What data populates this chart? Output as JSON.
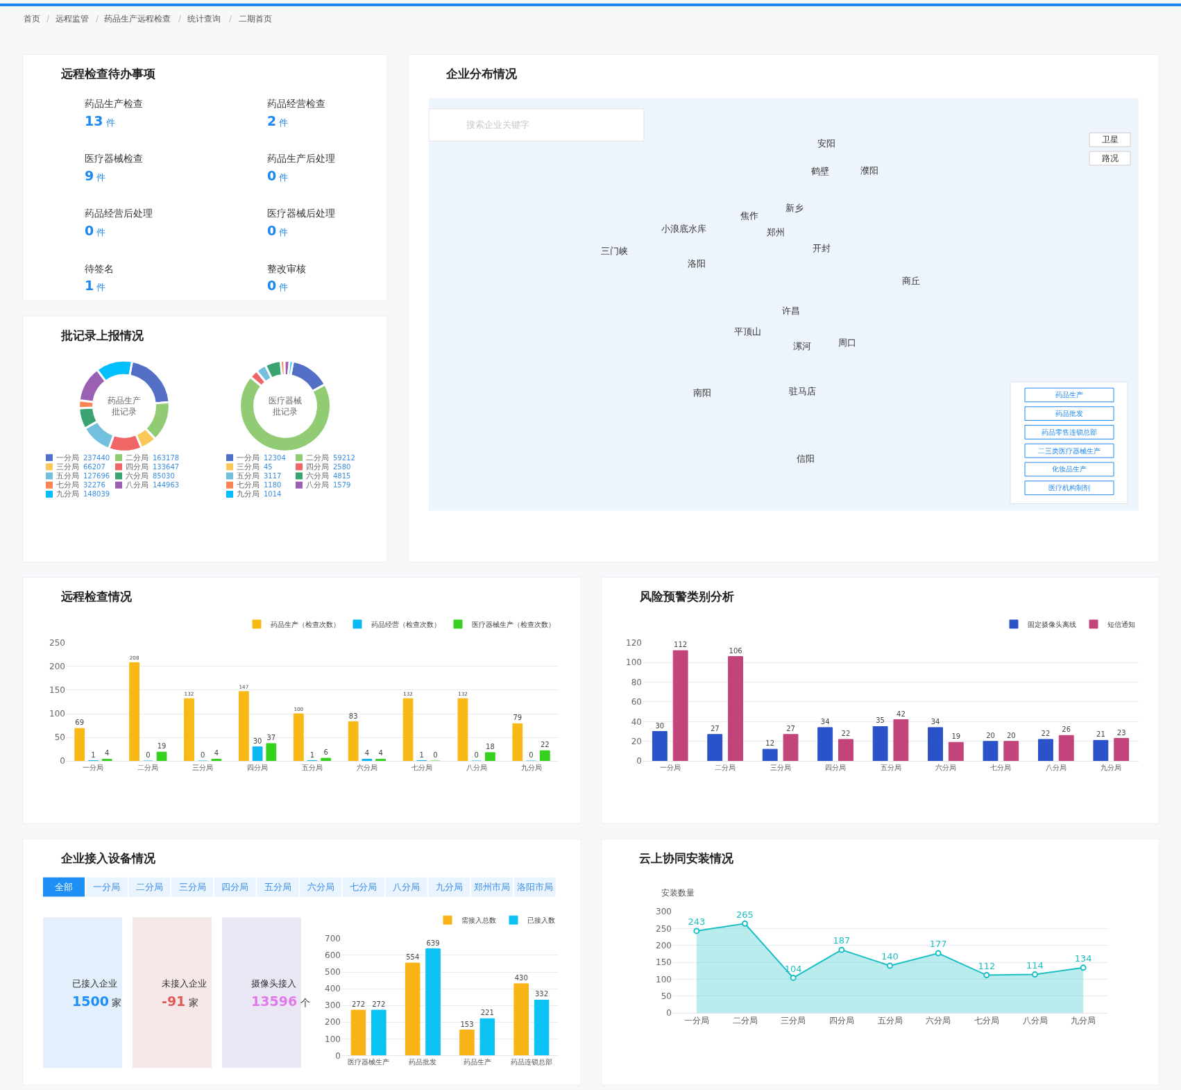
{
  "chart_data": [
    {
      "type": "other",
      "annotations": [
        "首页",
        "/",
        "远程监管",
        "/",
        "药品生产远程检查",
        "/",
        "统计查询",
        "/",
        "二期首页"
      ]
    },
    {
      "type": "other",
      "title": "远程检查待办事项",
      "categories": [
        "药品生产检查",
        "药品经营检查",
        "医疗器械检查",
        "药品生产后处理",
        "药品经营后处理",
        "医疗器械后处理",
        "待签名",
        "整改审核"
      ],
      "value_labels": [
        "13 件",
        "2 件",
        "9 件",
        "0 件",
        "0 件",
        "0 件",
        "1 件",
        "0 件"
      ]
    },
    {
      "type": "donut",
      "title": "批记录上报情况",
      "subtitle": "药品生产批记录",
      "categories": [
        "一分局",
        "二分局",
        "三分局",
        "四分局",
        "五分局",
        "六分局",
        "七分局",
        "八分局",
        "九分局"
      ],
      "values": [
        237440,
        163178,
        66207,
        133647,
        127696,
        85030,
        32276,
        144963,
        148039
      ],
      "colors": [
        "#5470c6",
        "#91cc75",
        "#fac858",
        "#ee6666",
        "#73c0de",
        "#3ba272",
        "#fc8452",
        "#9a60b4",
        "#00bfff"
      ],
      "data_labels": true,
      "legend": "bottom"
    },
    {
      "type": "donut",
      "subtitle": "医疗器械批记录",
      "categories": [
        "一分局",
        "二分局",
        "三分局",
        "四分局",
        "五分局",
        "六分局",
        "七分局",
        "八分局",
        "九分局"
      ],
      "values": [
        12304,
        59212,
        45,
        2580,
        3117,
        4815,
        1180,
        1579,
        1014
      ],
      "colors": [
        "#5470c6",
        "#91cc75",
        "#fac858",
        "#ee6666",
        "#73c0de",
        "#3ba272",
        "#fc8452",
        "#9a60b4",
        "#00bfff"
      ],
      "data_labels": true,
      "legend": "bottom"
    },
    {
      "type": "other",
      "title": "企业分布情况",
      "annotations": [
        "安阳",
        "鹤壁",
        "濮阳",
        "焦作",
        "新乡",
        "小浪底水库",
        "郑州",
        "开封",
        "三门峡",
        "洛阳",
        "商丘",
        "许昌",
        "平顶山",
        "漯河",
        "周口",
        "南阳",
        "驻马店",
        "信阳",
        "搜索企业关键字",
        "卫星",
        "路况",
        "药品生产",
        "药品批发",
        "药品零售连锁总部",
        "二三类医疗器械生产",
        "化妆品生产",
        "医疗机构制剂"
      ]
    },
    {
      "type": "bar",
      "title": "远程检查情况",
      "categories": [
        "一分局",
        "二分局",
        "三分局",
        "四分局",
        "五分局",
        "六分局",
        "七分局",
        "八分局",
        "九分局"
      ],
      "series": [
        {
          "name": "药品生产（检查次数）",
          "color": "#f8b916",
          "values": [
            69,
            208,
            132,
            147,
            100,
            83,
            132,
            132,
            79
          ]
        },
        {
          "name": "药品经营（检查次数）",
          "color": "#0ab8f2",
          "values": [
            1,
            0,
            0,
            30,
            1,
            4,
            1,
            0,
            0
          ]
        },
        {
          "name": "医疗器械生产（检查次数）",
          "color": "#36d11f",
          "values": [
            4,
            19,
            4,
            37,
            6,
            4,
            0,
            18,
            22
          ]
        }
      ],
      "ylim": [
        0,
        250
      ],
      "yticks": [
        0,
        50,
        100,
        150,
        200,
        250
      ],
      "grid": "y",
      "legend": "top right",
      "data_labels": true
    },
    {
      "type": "bar",
      "title": "风险预警类别分析",
      "categories": [
        "一分局",
        "二分局",
        "三分局",
        "四分局",
        "五分局",
        "六分局",
        "七分局",
        "八分局",
        "九分局"
      ],
      "series": [
        {
          "name": "固定摄像头离线",
          "color": "#2a52c9",
          "values": [
            30,
            27,
            12,
            34,
            35,
            34,
            20,
            22,
            21
          ]
        },
        {
          "name": "短信通知",
          "color": "#c2447a",
          "values": [
            112,
            106,
            27,
            22,
            42,
            19,
            20,
            26,
            23
          ]
        }
      ],
      "ylim": [
        0,
        120
      ],
      "yticks": [
        0,
        20,
        40,
        60,
        80,
        100,
        120
      ],
      "grid": "y",
      "legend": "top right",
      "data_labels": true
    },
    {
      "type": "other",
      "title": "企业接入设备情况",
      "annotations": [
        "全部",
        "一分局",
        "二分局",
        "三分局",
        "四分局",
        "五分局",
        "六分局",
        "七分局",
        "八分局",
        "九分局",
        "郑州市局",
        "洛阳市局"
      ],
      "categories": [
        "已接入企业",
        "未接入企业",
        "摄像头接入"
      ],
      "value_labels": [
        "1500 家",
        "-91 家",
        "13596 个"
      ]
    },
    {
      "type": "bar",
      "categories": [
        "医疗器械生产",
        "药品批发",
        "药品生产",
        "药品连锁总部"
      ],
      "series": [
        {
          "name": "需接入总数",
          "color": "#f8b416",
          "values": [
            272,
            554,
            153,
            430
          ]
        },
        {
          "name": "已接入数",
          "color": "#0cc2f2",
          "values": [
            272,
            639,
            221,
            332
          ]
        }
      ],
      "ylim": [
        0,
        700
      ],
      "yticks": [
        0,
        100,
        200,
        300,
        400,
        500,
        600,
        700
      ],
      "grid": "y",
      "legend": "top right",
      "data_labels": true
    },
    {
      "type": "area",
      "title": "云上协同安装情况",
      "ylabel": "安装数量",
      "categories": [
        "一分局",
        "二分局",
        "三分局",
        "四分局",
        "五分局",
        "六分局",
        "七分局",
        "八分局",
        "九分局"
      ],
      "values": [
        243,
        265,
        104,
        187,
        140,
        177,
        112,
        114,
        134
      ],
      "color": "#1bbfc4",
      "ylim": [
        0,
        300
      ],
      "yticks": [
        0,
        50,
        100,
        150,
        200,
        250,
        300
      ],
      "grid": "y",
      "marker": "circle",
      "data_labels": true
    }
  ]
}
